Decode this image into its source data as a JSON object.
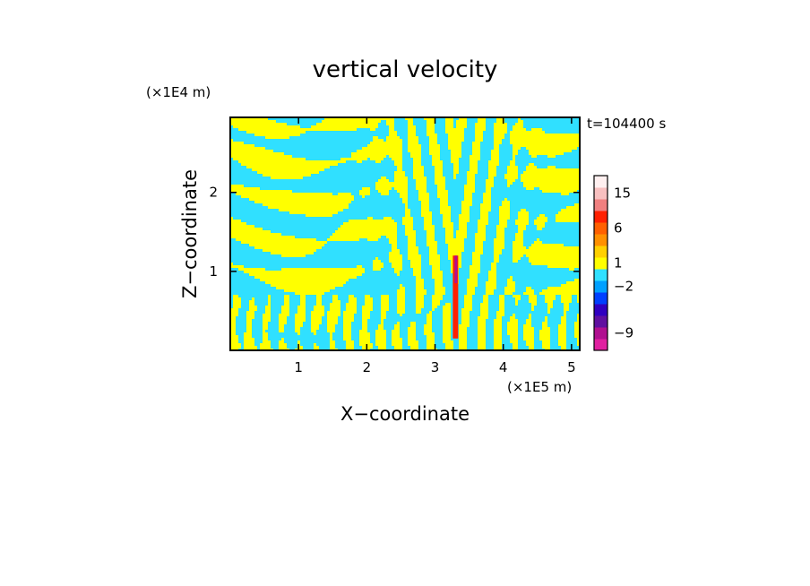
{
  "chart_data": {
    "type": "heatmap",
    "title": "vertical velocity",
    "xlabel": "X−coordinate",
    "ylabel": "Z−coordinate",
    "x_unit": "(×1E5 m)",
    "y_unit": "(×1E4 m)",
    "time_label": "t=104400 s",
    "xlim": [
      0,
      5.12
    ],
    "ylim": [
      0,
      2.95
    ],
    "x_ticks": [
      {
        "value": 1,
        "label": "1"
      },
      {
        "value": 2,
        "label": "2"
      },
      {
        "value": 3,
        "label": "3"
      },
      {
        "value": 4,
        "label": "4"
      },
      {
        "value": 5,
        "label": "5"
      }
    ],
    "y_ticks": [
      {
        "value": 1,
        "label": "1"
      },
      {
        "value": 2,
        "label": "2"
      }
    ],
    "colorbar": {
      "levels": [
        {
          "color": "#e020a0"
        },
        {
          "color": "#b01090"
        },
        {
          "color": "#6010a0"
        },
        {
          "color": "#3000c0"
        },
        {
          "color": "#0040ff"
        },
        {
          "color": "#00a0ff"
        },
        {
          "color": "#30e0ff"
        },
        {
          "color": "#ffff00"
        },
        {
          "color": "#ffd000"
        },
        {
          "color": "#ff9000"
        },
        {
          "color": "#ff6000"
        },
        {
          "color": "#ff2000"
        },
        {
          "color": "#f08080"
        },
        {
          "color": "#f8c0c0"
        },
        {
          "color": "#fff0f0"
        }
      ],
      "labels": [
        {
          "level_index": 1,
          "text": "−9"
        },
        {
          "level_index": 5,
          "text": "−2"
        },
        {
          "level_index": 7,
          "text": "1"
        },
        {
          "level_index": 10,
          "text": "6"
        },
        {
          "level_index": 13,
          "text": "15"
        }
      ]
    },
    "field_colors": {
      "negative": "#30e0ff",
      "positive": "#ffff00",
      "strong_positive": "#ff2000",
      "strong_negative": "#b01090"
    },
    "features": {
      "jet_x": 3.3,
      "jet_z_range": [
        0.15,
        1.2
      ]
    }
  }
}
